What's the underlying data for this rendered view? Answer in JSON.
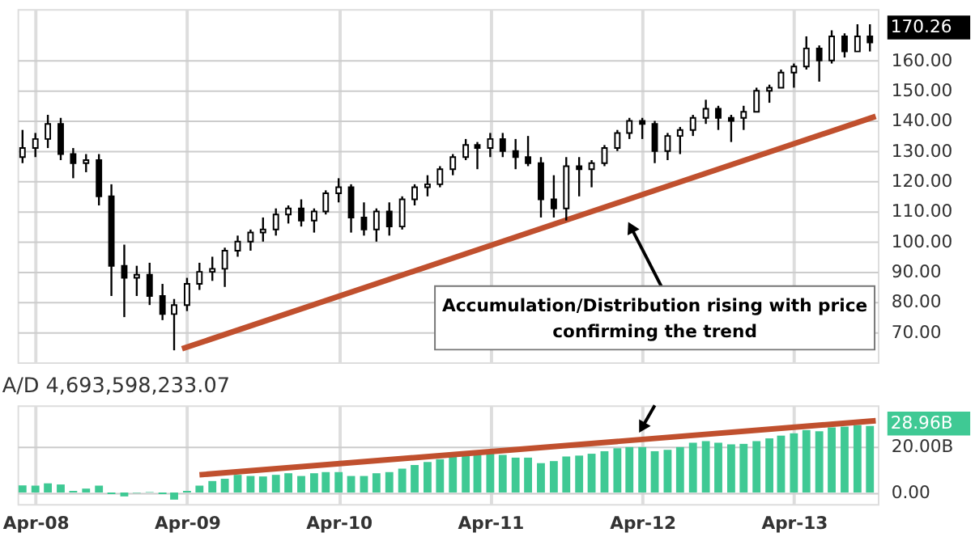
{
  "chart_data": [
    {
      "type": "candlestick",
      "tick_labels": "y",
      "grid": true,
      "x": [
        "2008-03",
        "2008-04",
        "2008-05",
        "2008-06",
        "2008-07",
        "2008-08",
        "2008-09",
        "2008-10",
        "2008-11",
        "2008-12",
        "2009-01",
        "2009-02",
        "2009-03",
        "2009-04",
        "2009-05",
        "2009-06",
        "2009-07",
        "2009-08",
        "2009-09",
        "2009-10",
        "2009-11",
        "2009-12",
        "2010-01",
        "2010-02",
        "2010-03",
        "2010-04",
        "2010-05",
        "2010-06",
        "2010-07",
        "2010-08",
        "2010-09",
        "2010-10",
        "2010-11",
        "2010-12",
        "2011-01",
        "2011-02",
        "2011-03",
        "2011-04",
        "2011-05",
        "2011-06",
        "2011-07",
        "2011-08",
        "2011-09",
        "2011-10",
        "2011-11",
        "2011-12",
        "2012-01",
        "2012-02",
        "2012-03",
        "2012-04",
        "2012-05",
        "2012-06",
        "2012-07",
        "2012-08",
        "2012-09",
        "2012-10",
        "2012-11",
        "2012-12",
        "2013-01",
        "2013-02",
        "2013-03",
        "2013-04",
        "2013-05",
        "2013-06",
        "2013-07",
        "2013-08",
        "2013-09",
        "2013-10"
      ],
      "ohlc": [
        [
          128,
          137,
          126,
          131
        ],
        [
          131,
          136,
          128,
          134
        ],
        [
          134,
          142,
          131,
          139
        ],
        [
          139,
          141,
          127,
          129
        ],
        [
          129,
          131,
          121,
          126
        ],
        [
          126,
          129,
          123,
          127
        ],
        [
          127,
          129,
          112,
          115
        ],
        [
          115,
          119,
          82,
          92
        ],
        [
          92,
          99,
          75,
          88
        ],
        [
          88,
          92,
          82,
          89
        ],
        [
          89,
          93,
          79,
          82
        ],
        [
          82,
          86,
          74,
          76
        ],
        [
          76,
          81,
          64,
          79
        ],
        [
          79,
          88,
          77,
          86
        ],
        [
          86,
          93,
          84,
          90
        ],
        [
          90,
          95,
          87,
          91
        ],
        [
          91,
          98,
          85,
          97
        ],
        [
          97,
          102,
          95,
          100
        ],
        [
          100,
          104,
          97,
          103
        ],
        [
          103,
          108,
          100,
          104
        ],
        [
          104,
          111,
          102,
          109
        ],
        [
          109,
          112,
          106,
          111
        ],
        [
          111,
          114,
          105,
          107
        ],
        [
          107,
          111,
          103,
          110
        ],
        [
          110,
          117,
          109,
          116
        ],
        [
          116,
          121,
          113,
          118
        ],
        [
          118,
          119,
          103,
          108
        ],
        [
          108,
          113,
          102,
          104
        ],
        [
          104,
          111,
          100,
          110
        ],
        [
          110,
          113,
          102,
          105
        ],
        [
          105,
          115,
          104,
          114
        ],
        [
          114,
          119,
          112,
          118
        ],
        [
          118,
          122,
          115,
          119
        ],
        [
          119,
          125,
          118,
          124
        ],
        [
          124,
          129,
          122,
          128
        ],
        [
          128,
          134,
          127,
          132
        ],
        [
          132,
          133,
          124,
          131
        ],
        [
          131,
          136,
          128,
          134
        ],
        [
          134,
          136,
          128,
          130
        ],
        [
          130,
          134,
          124,
          128
        ],
        [
          128,
          135,
          125,
          126
        ],
        [
          126,
          128,
          108,
          114
        ],
        [
          114,
          122,
          108,
          111
        ],
        [
          111,
          128,
          107,
          125
        ],
        [
          125,
          128,
          115,
          124
        ],
        [
          124,
          127,
          118,
          126
        ],
        [
          126,
          132,
          125,
          131
        ],
        [
          131,
          137,
          130,
          136
        ],
        [
          136,
          141,
          134,
          140
        ],
        [
          140,
          141,
          134,
          139
        ],
        [
          139,
          140,
          126,
          130
        ],
        [
          130,
          136,
          127,
          135
        ],
        [
          135,
          138,
          129,
          137
        ],
        [
          137,
          142,
          135,
          141
        ],
        [
          141,
          147,
          139,
          144
        ],
        [
          144,
          145,
          137,
          141
        ],
        [
          141,
          142,
          133,
          140
        ],
        [
          141,
          145,
          137,
          143
        ],
        [
          143,
          151,
          143,
          150
        ],
        [
          150,
          152,
          146,
          151
        ],
        [
          151,
          157,
          151,
          156
        ],
        [
          156,
          159,
          151,
          158
        ],
        [
          158,
          168,
          157,
          164
        ],
        [
          164,
          165,
          153,
          160
        ],
        [
          160,
          170,
          159,
          168
        ],
        [
          168,
          169,
          161,
          163
        ],
        [
          163,
          172,
          163,
          168
        ],
        [
          168,
          172,
          163,
          166
        ]
      ],
      "series": [
        {
          "type": "line",
          "color": "#c0502e",
          "x": [
            "2009-03-20",
            "2013-10-15"
          ],
          "values": [
            64.5,
            141.5
          ]
        }
      ],
      "xlim": [
        "2008-02-18",
        "2013-10-20"
      ],
      "xticks": [
        {
          "value": "2008-04-01",
          "label": null
        },
        {
          "value": "2009-04-01",
          "label": null
        },
        {
          "value": "2010-04-01",
          "label": null
        },
        {
          "value": "2011-04-01",
          "label": null
        },
        {
          "value": "2012-04-01",
          "label": null
        },
        {
          "value": "2013-04-01",
          "label": null
        }
      ],
      "ylim": [
        60,
        177
      ],
      "yticks": [
        {
          "value": 70,
          "label": "70.00"
        },
        {
          "value": 80,
          "label": "80.00"
        },
        {
          "value": 90,
          "label": "90.00"
        },
        {
          "value": 100,
          "label": "100.00"
        },
        {
          "value": 110,
          "label": "110.00"
        },
        {
          "value": 120,
          "label": "120.00"
        },
        {
          "value": 130,
          "label": "130.00"
        },
        {
          "value": 140,
          "label": "140.00"
        },
        {
          "value": 150,
          "label": "150.00"
        },
        {
          "value": 160,
          "label": "160.00"
        }
      ],
      "annotations": [
        "Accumulation/Distribution rising with price confirming the trend",
        "170.26"
      ]
    },
    {
      "type": "bar",
      "title": "A/D 4,693,598,233.07",
      "grid": true,
      "series": [
        {
          "type": "bar",
          "color": "#3fc994",
          "x": [
            "2008-03",
            "2008-04",
            "2008-05",
            "2008-06",
            "2008-07",
            "2008-08",
            "2008-09",
            "2008-10",
            "2008-11",
            "2008-12",
            "2009-01",
            "2009-02",
            "2009-03",
            "2009-04",
            "2009-05",
            "2009-06",
            "2009-07",
            "2009-08",
            "2009-09",
            "2009-10",
            "2009-11",
            "2009-12",
            "2010-01",
            "2010-02",
            "2010-03",
            "2010-04",
            "2010-05",
            "2010-06",
            "2010-07",
            "2010-08",
            "2010-09",
            "2010-10",
            "2010-11",
            "2010-12",
            "2011-01",
            "2011-02",
            "2011-03",
            "2011-04",
            "2011-05",
            "2011-06",
            "2011-07",
            "2011-08",
            "2011-09",
            "2011-10",
            "2011-11",
            "2011-12",
            "2012-01",
            "2012-02",
            "2012-03",
            "2012-04",
            "2012-05",
            "2012-06",
            "2012-07",
            "2012-08",
            "2012-09",
            "2012-10",
            "2012-11",
            "2012-12",
            "2013-01",
            "2013-02",
            "2013-03",
            "2013-04",
            "2013-05",
            "2013-06",
            "2013-07",
            "2013-08",
            "2013-09",
            "2013-10"
          ],
          "values": [
            3.1,
            3,
            4,
            3.5,
            0.7,
            1.7,
            3,
            -0.7,
            -1.7,
            -0.2,
            0.2,
            -0.7,
            -3.1,
            0.7,
            3,
            5,
            6,
            7.7,
            7.2,
            7,
            7.7,
            8.4,
            7.2,
            8.4,
            8.9,
            8.9,
            7.2,
            7.2,
            8.4,
            8.9,
            10.4,
            12,
            13.3,
            14.5,
            15.7,
            16.4,
            16.4,
            16.9,
            16.4,
            15.2,
            15.2,
            12.8,
            13.7,
            15.7,
            16.1,
            16.9,
            18,
            19.3,
            19.8,
            19.8,
            18,
            18.6,
            19.8,
            21.7,
            22.4,
            21.7,
            21,
            21.2,
            22.4,
            23.6,
            24.8,
            25.8,
            27.2,
            26.7,
            28.4,
            28.7,
            29.4,
            29
          ]
        },
        {
          "type": "line",
          "color": "#c0502e",
          "x": [
            "2009-05-01",
            "2013-10-15"
          ],
          "values": [
            7.7,
            31.3
          ]
        }
      ],
      "xlim": [
        "2008-02-18",
        "2013-10-20"
      ],
      "xticks": [
        {
          "value": "2008-04-01",
          "label": "Apr-08"
        },
        {
          "value": "2009-04-01",
          "label": "Apr-09"
        },
        {
          "value": "2010-04-01",
          "label": "Apr-10"
        },
        {
          "value": "2011-04-01",
          "label": "Apr-11"
        },
        {
          "value": "2012-04-01",
          "label": "Apr-12"
        },
        {
          "value": "2013-04-01",
          "label": "Apr-13"
        }
      ],
      "annotations": [
        "28.96B"
      ],
      "ylim": [
        -5,
        38
      ],
      "yticks": [
        {
          "value": 0,
          "label": "0.00"
        },
        {
          "value": 20,
          "label": "20.00B"
        }
      ]
    }
  ]
}
